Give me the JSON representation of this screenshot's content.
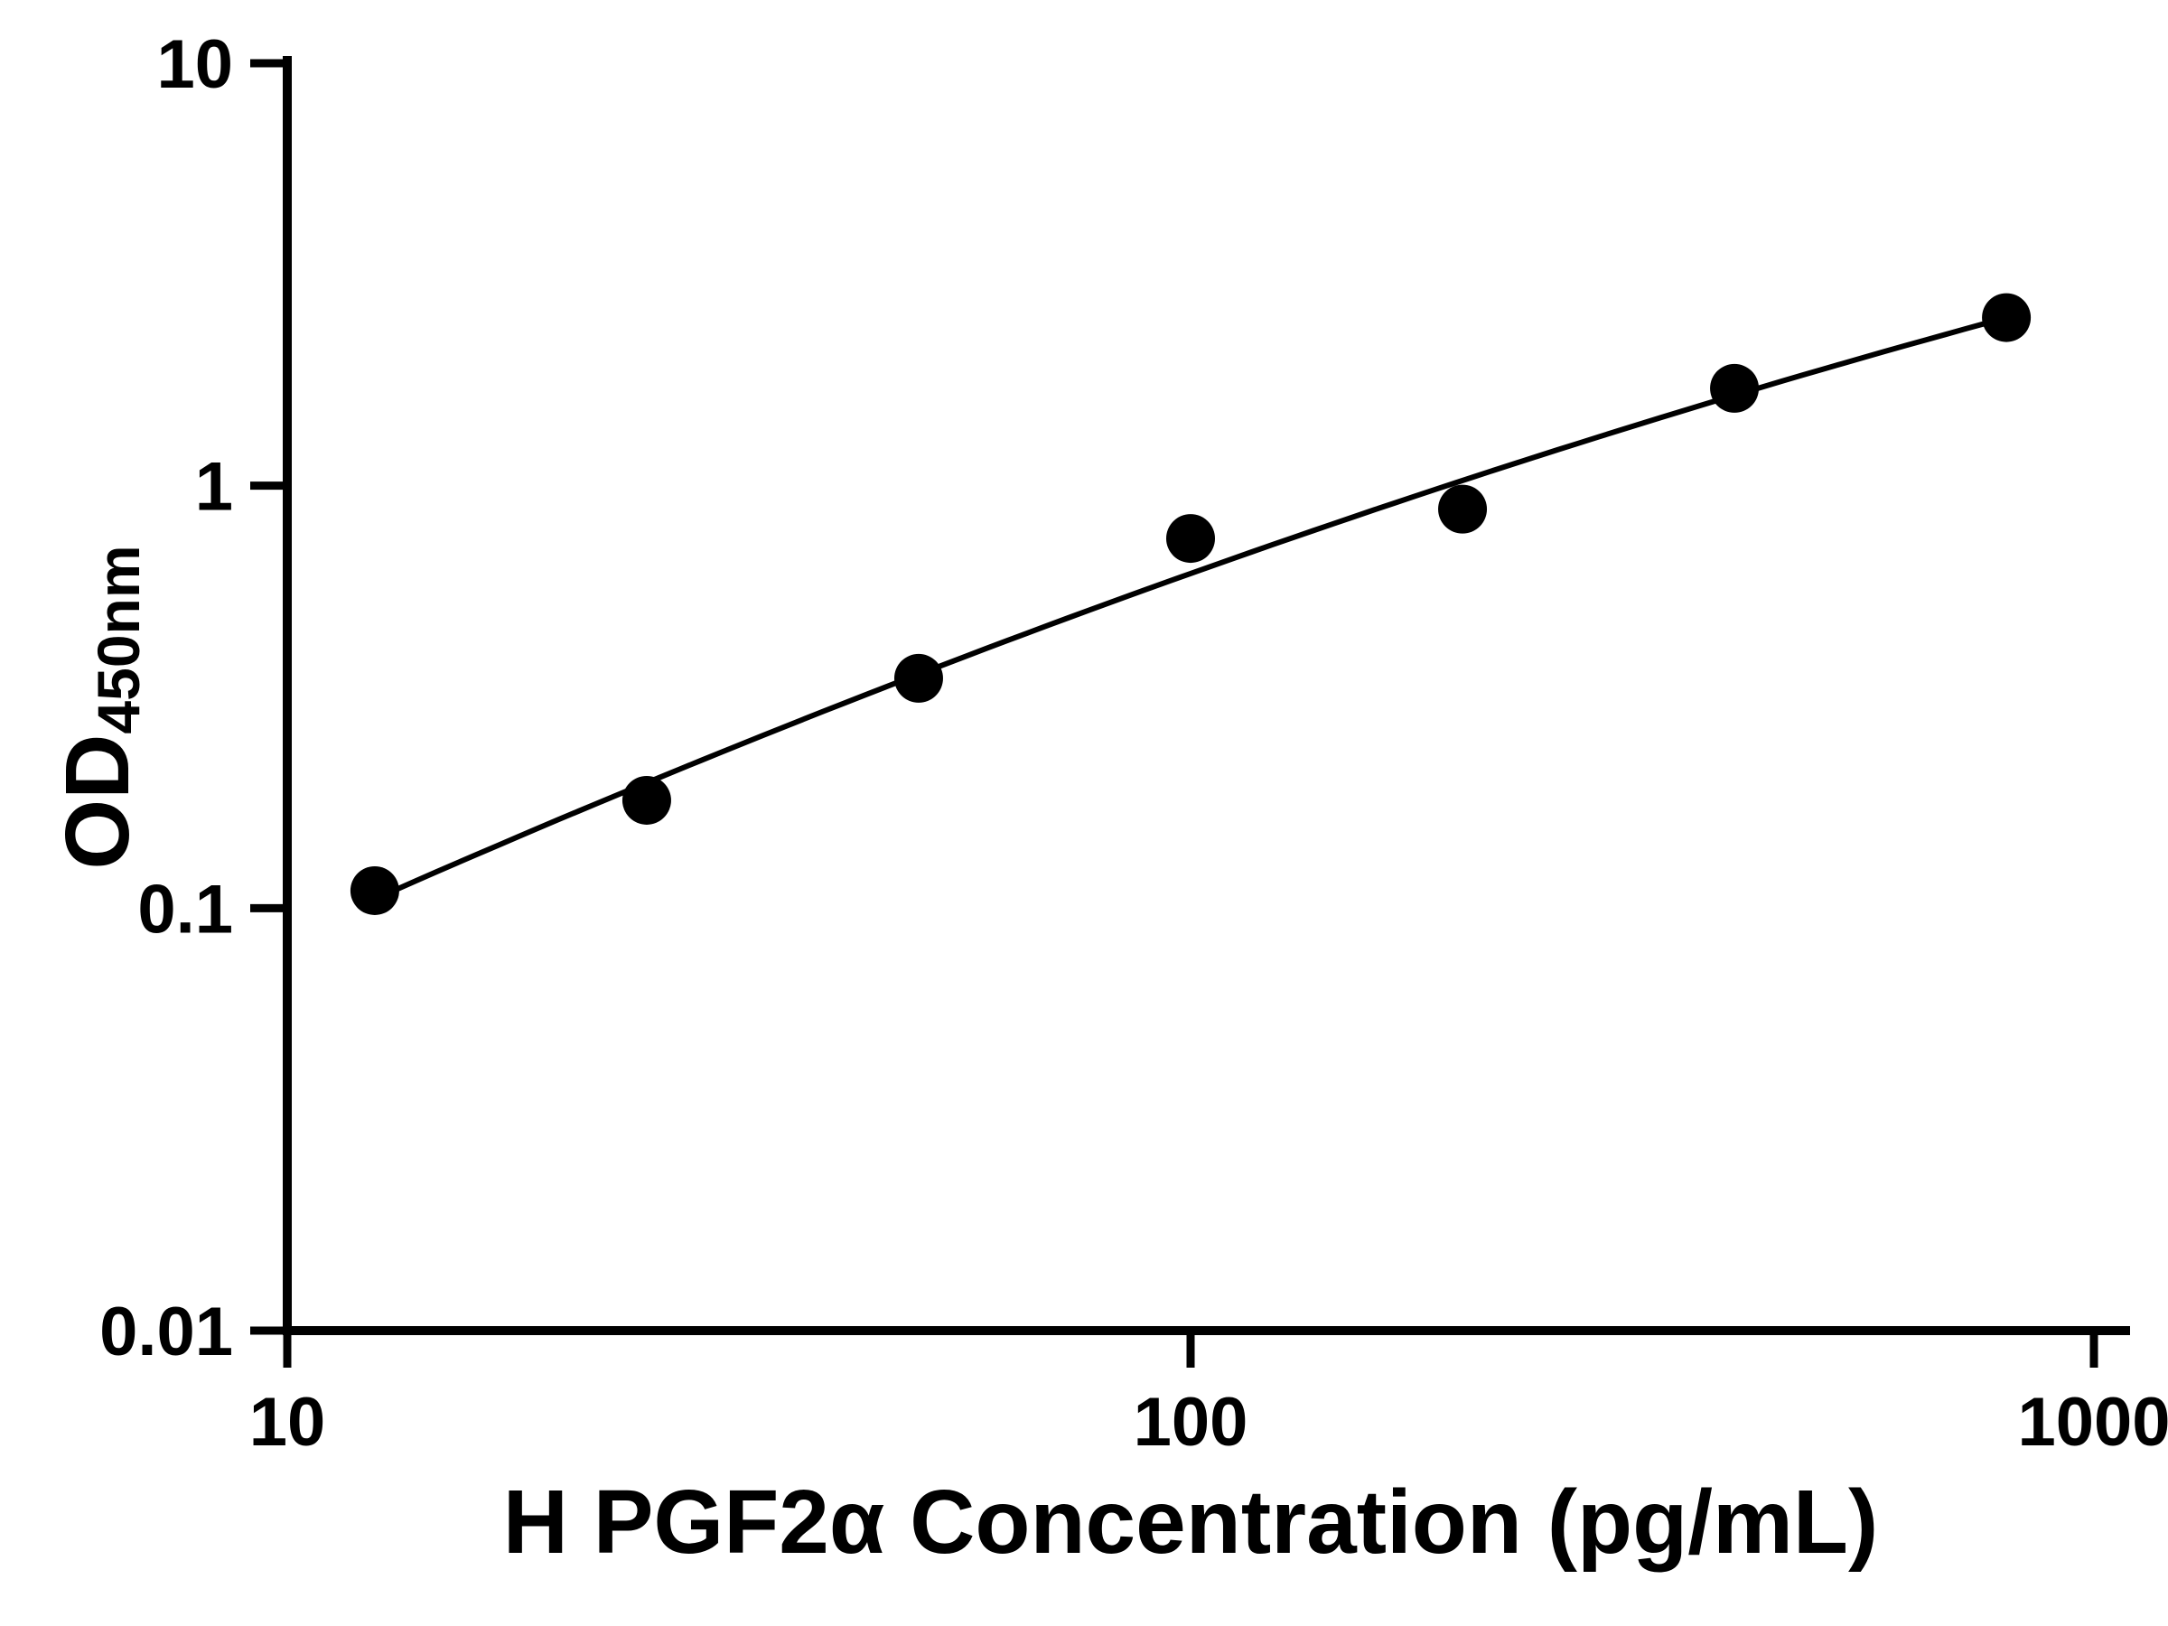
{
  "chart_data": {
    "type": "scatter",
    "title": "",
    "xlabel": "H PGF2α Concentration (pg/mL)",
    "ylabel_main": "OD",
    "ylabel_sub": "450nm",
    "x": [
      12.5,
      25,
      50,
      100,
      200,
      400,
      800
    ],
    "y": [
      0.11,
      0.18,
      0.35,
      0.75,
      0.88,
      1.7,
      2.5
    ],
    "fit": "quadratic-loglog",
    "xscale": "log",
    "yscale": "log",
    "xlim": [
      10,
      1000
    ],
    "ylim": [
      0.01,
      10
    ],
    "x_ticks": [
      10,
      100,
      1000
    ],
    "x_tick_labels": [
      "10",
      "100",
      "1000"
    ],
    "y_ticks": [
      0.01,
      0.1,
      1,
      10
    ],
    "y_tick_labels": [
      "0.01",
      "0.1",
      "1",
      "10"
    ],
    "grid": false,
    "legend": "none",
    "marker_color": "#000000",
    "line_color": "#000000",
    "axis_color": "#000000",
    "background": "#ffffff"
  }
}
